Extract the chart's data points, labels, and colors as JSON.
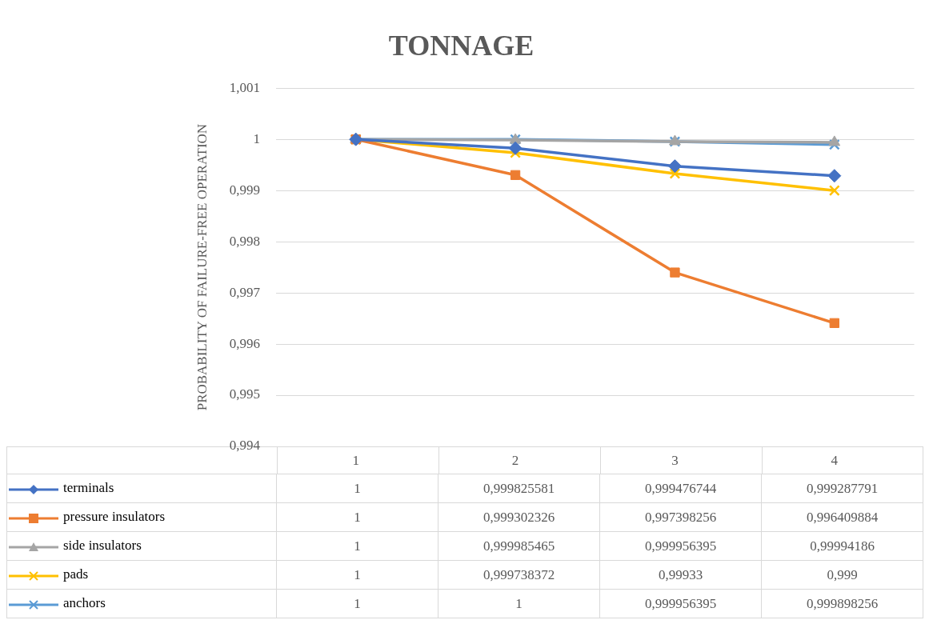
{
  "chart_data": {
    "type": "line",
    "title": "TONNAGE",
    "ylabel": "PROBABILITY OF FAILURE-FREE OPERATION",
    "categories": [
      "1",
      "2",
      "3",
      "4"
    ],
    "ylim": [
      0.994,
      1.001
    ],
    "yticks": [
      {
        "value": 0.994,
        "label": "0,994"
      },
      {
        "value": 0.995,
        "label": "0,995"
      },
      {
        "value": 0.996,
        "label": "0,996"
      },
      {
        "value": 0.997,
        "label": "0,997"
      },
      {
        "value": 0.998,
        "label": "0,998"
      },
      {
        "value": 0.999,
        "label": "0,999"
      },
      {
        "value": 1,
        "label": "1"
      },
      {
        "value": 1.001,
        "label": "1,001"
      }
    ],
    "grid": "y",
    "legend": "bottom",
    "series": [
      {
        "name": "terminals",
        "color": "#4472c4",
        "marker": "diamond",
        "values": [
          1,
          0.999825581,
          0.999476744,
          0.999287791
        ],
        "value_labels": [
          "1",
          "0,999825581",
          "0,999476744",
          "0,999287791"
        ]
      },
      {
        "name": "pressure insulators",
        "color": "#ed7d31",
        "marker": "square",
        "values": [
          1,
          0.999302326,
          0.997398256,
          0.996409884
        ],
        "value_labels": [
          "1",
          "0,999302326",
          "0,997398256",
          "0,996409884"
        ]
      },
      {
        "name": "side insulators",
        "color": "#a5a5a5",
        "marker": "triangle",
        "values": [
          1,
          0.999985465,
          0.999956395,
          0.99994186
        ],
        "value_labels": [
          "1",
          "0,999985465",
          "0,999956395",
          "0,99994186"
        ]
      },
      {
        "name": "pads",
        "color": "#ffc000",
        "marker": "cross",
        "values": [
          1,
          0.999738372,
          0.99933,
          0.999
        ],
        "value_labels": [
          "1",
          "0,999738372",
          "0,99933",
          "0,999"
        ]
      },
      {
        "name": "anchors",
        "color": "#5b9bd5",
        "marker": "cross",
        "values": [
          1,
          1,
          0.999956395,
          0.999898256
        ],
        "value_labels": [
          "1",
          "1",
          "0,999956395",
          "0,999898256"
        ]
      }
    ]
  }
}
